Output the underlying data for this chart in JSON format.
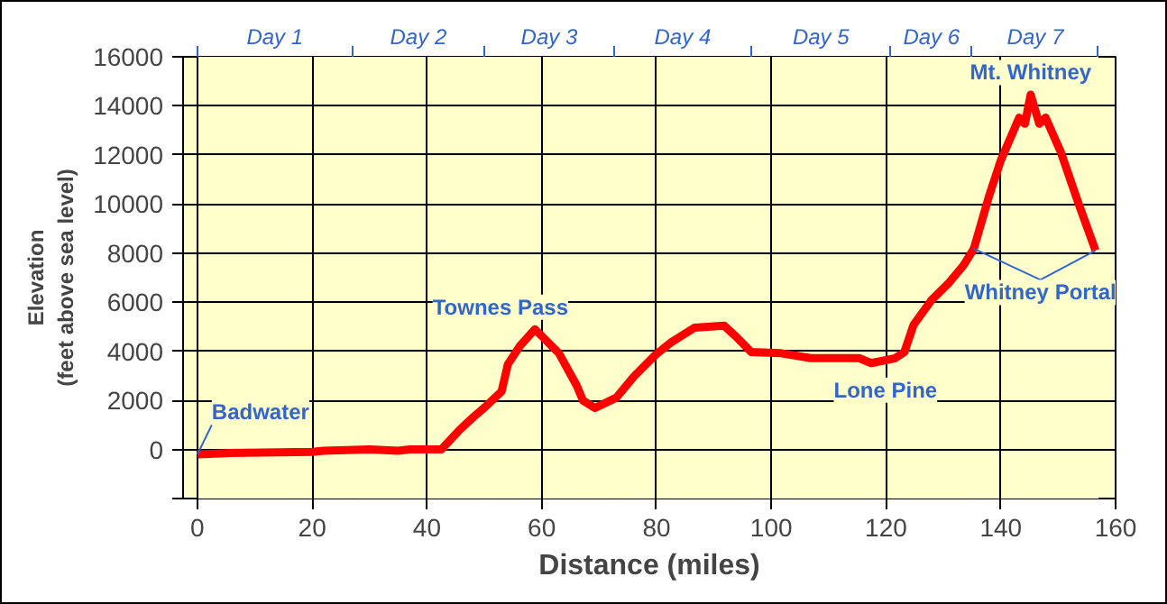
{
  "chart_data": {
    "type": "line",
    "xlabel": "Distance (miles)",
    "ylabel": "Elevation\n(feet above sea level)",
    "x": [
      0,
      5,
      20,
      22,
      30,
      35,
      37,
      42.5,
      45.7,
      48,
      50,
      53,
      54.1,
      56.2,
      58.8,
      63,
      66.1,
      67.2,
      69.3,
      73,
      76.1,
      79.8,
      82.4,
      86.6,
      91.8,
      93.9,
      96.5,
      101.7,
      106.9,
      115.3,
      117.4,
      121.6,
      123.2,
      124.8,
      127.9,
      131,
      133.5,
      135.3,
      137.9,
      140,
      143.2,
      144.2,
      145.2,
      146.7,
      147.8,
      150.4,
      153.5,
      156.5
    ],
    "series": [
      {
        "color": "#ff0000",
        "values": [
          -200,
          -150,
          -100,
          -50,
          0,
          -50,
          0,
          0,
          800,
          1300,
          1700,
          2360,
          3470,
          4220,
          4900,
          3920,
          2600,
          1990,
          1690,
          2110,
          2980,
          3850,
          4340,
          4960,
          5040,
          4590,
          3970,
          3920,
          3720,
          3720,
          3520,
          3720,
          3970,
          5080,
          6080,
          6800,
          7500,
          8180,
          10290,
          11780,
          13520,
          13270,
          14460,
          13270,
          13520,
          12150,
          10050,
          8110
        ]
      }
    ],
    "xlim": [
      -2.5,
      160
    ],
    "xticks": [
      0,
      20,
      40,
      60,
      80,
      100,
      120,
      140,
      160
    ],
    "ylim": [
      -2000,
      16000
    ],
    "yticks": [
      {
        "value": -2000,
        "label": null
      },
      0,
      2000,
      4000,
      6000,
      8000,
      10000,
      12000,
      14000,
      16000
    ],
    "bands": [
      {
        "axis": "x",
        "from": 0,
        "to": 27,
        "label": "Day 1",
        "color": "#ffffcc"
      },
      {
        "axis": "x",
        "from": 27,
        "to": 50,
        "label": "Day 2",
        "color": "#ffffcc"
      },
      {
        "axis": "x",
        "from": 50,
        "to": 72.6,
        "label": "Day 3",
        "color": "#ffffcc"
      },
      {
        "axis": "x",
        "from": 72.6,
        "to": 96.5,
        "label": "Day 4",
        "color": "#ffffcc"
      },
      {
        "axis": "x",
        "from": 96.5,
        "to": 120.8,
        "label": "Day 5",
        "color": "#ffffcc"
      },
      {
        "axis": "x",
        "from": 120.8,
        "to": 135,
        "label": "Day 6",
        "color": "#ffffcc"
      },
      {
        "axis": "x",
        "from": 135,
        "to": 157,
        "label": "Day 7",
        "color": "#ffffcc"
      }
    ],
    "grid": true,
    "marker": "none",
    "line_style": "solid",
    "annotations": [
      {
        "text": "Badwater",
        "x": 0,
        "y": -200
      },
      {
        "text": "Townes Pass",
        "x": 58.8,
        "y": 4900
      },
      {
        "text": "Lone Pine",
        "x": 117.4,
        "y": 3520
      },
      {
        "text": "Mt. Whitney",
        "x": 145.2,
        "y": 14460
      },
      {
        "text": "Whitney Portal",
        "x": 156.5,
        "y": 8110
      }
    ]
  }
}
